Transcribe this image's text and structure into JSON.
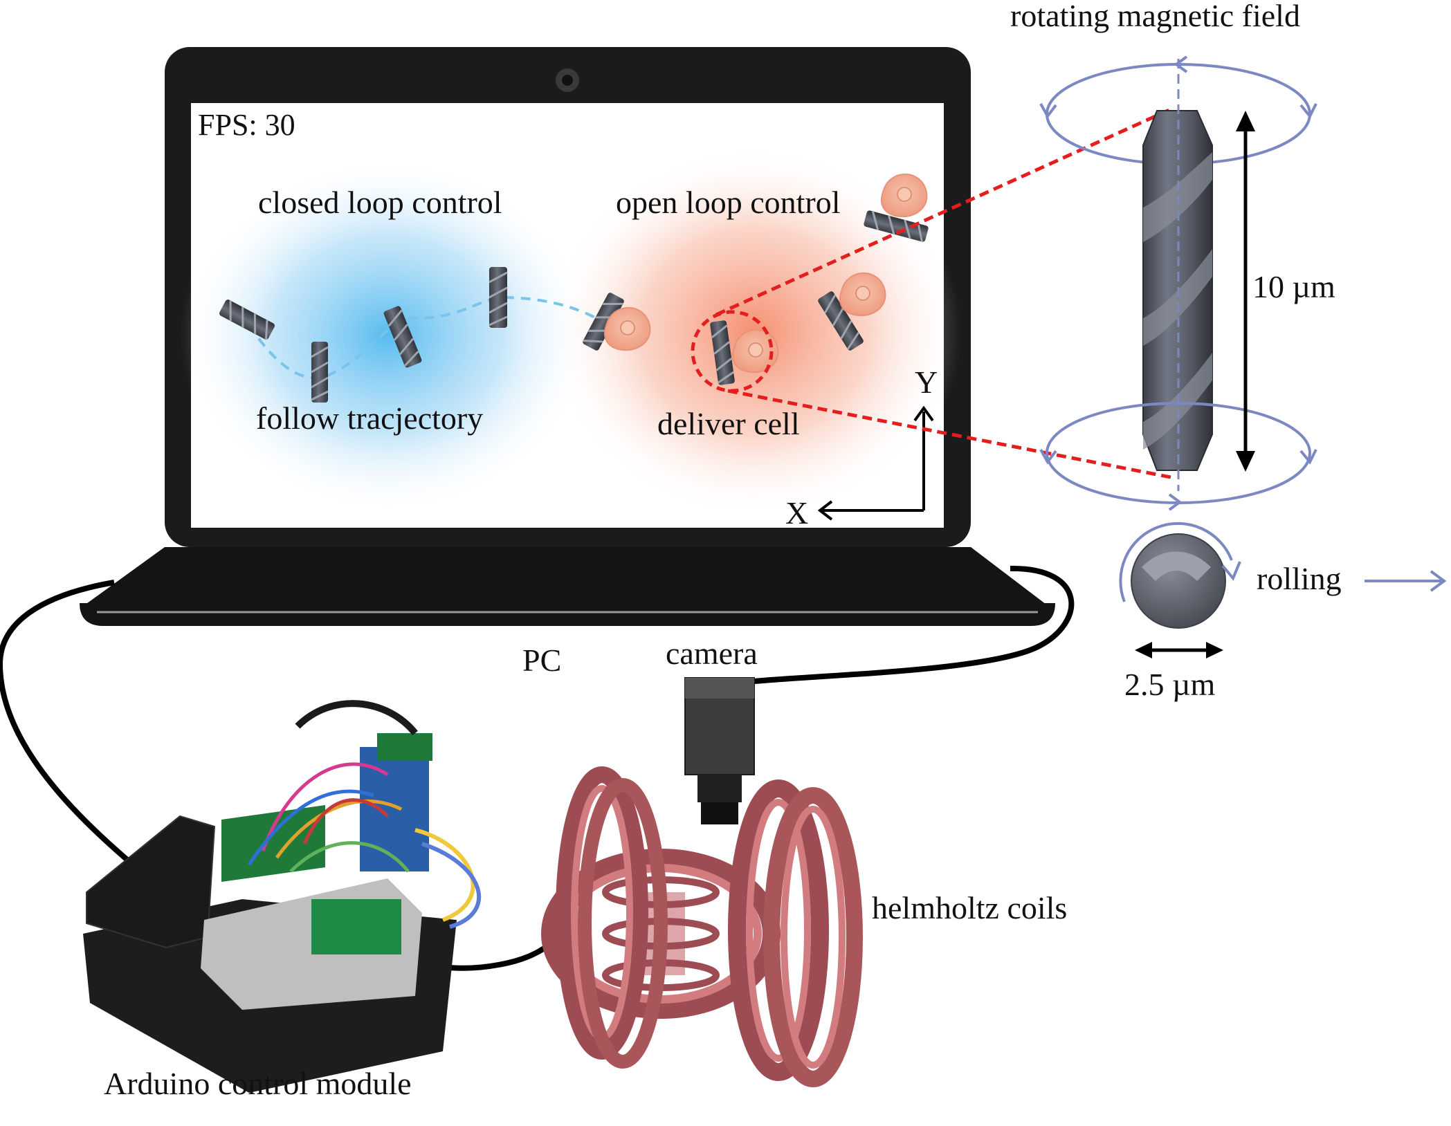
{
  "screen": {
    "fps": "FPS: 30",
    "closed_loop": "closed loop control",
    "open_loop": "open loop control",
    "follow": "follow tracjectory",
    "deliver": "deliver cell",
    "axis_x": "X",
    "axis_y": "Y"
  },
  "labels": {
    "rotating_field": "rotating magnetic field",
    "length": "10 µm",
    "rolling": "rolling",
    "diameter": "2.5 µm",
    "pc": "PC",
    "camera": "camera",
    "coils": "helmholtz coils",
    "arduino": "Arduino control module"
  },
  "colors": {
    "field": "#7b88c2",
    "highlight": "#e41e1e",
    "closed_glow": "#4fb8ef",
    "open_glow": "#f58a6a",
    "robot": "#4a4e57",
    "cell": "#f3ae94",
    "coil": "#c76a6e",
    "trajectory": "#7ac3ea"
  }
}
